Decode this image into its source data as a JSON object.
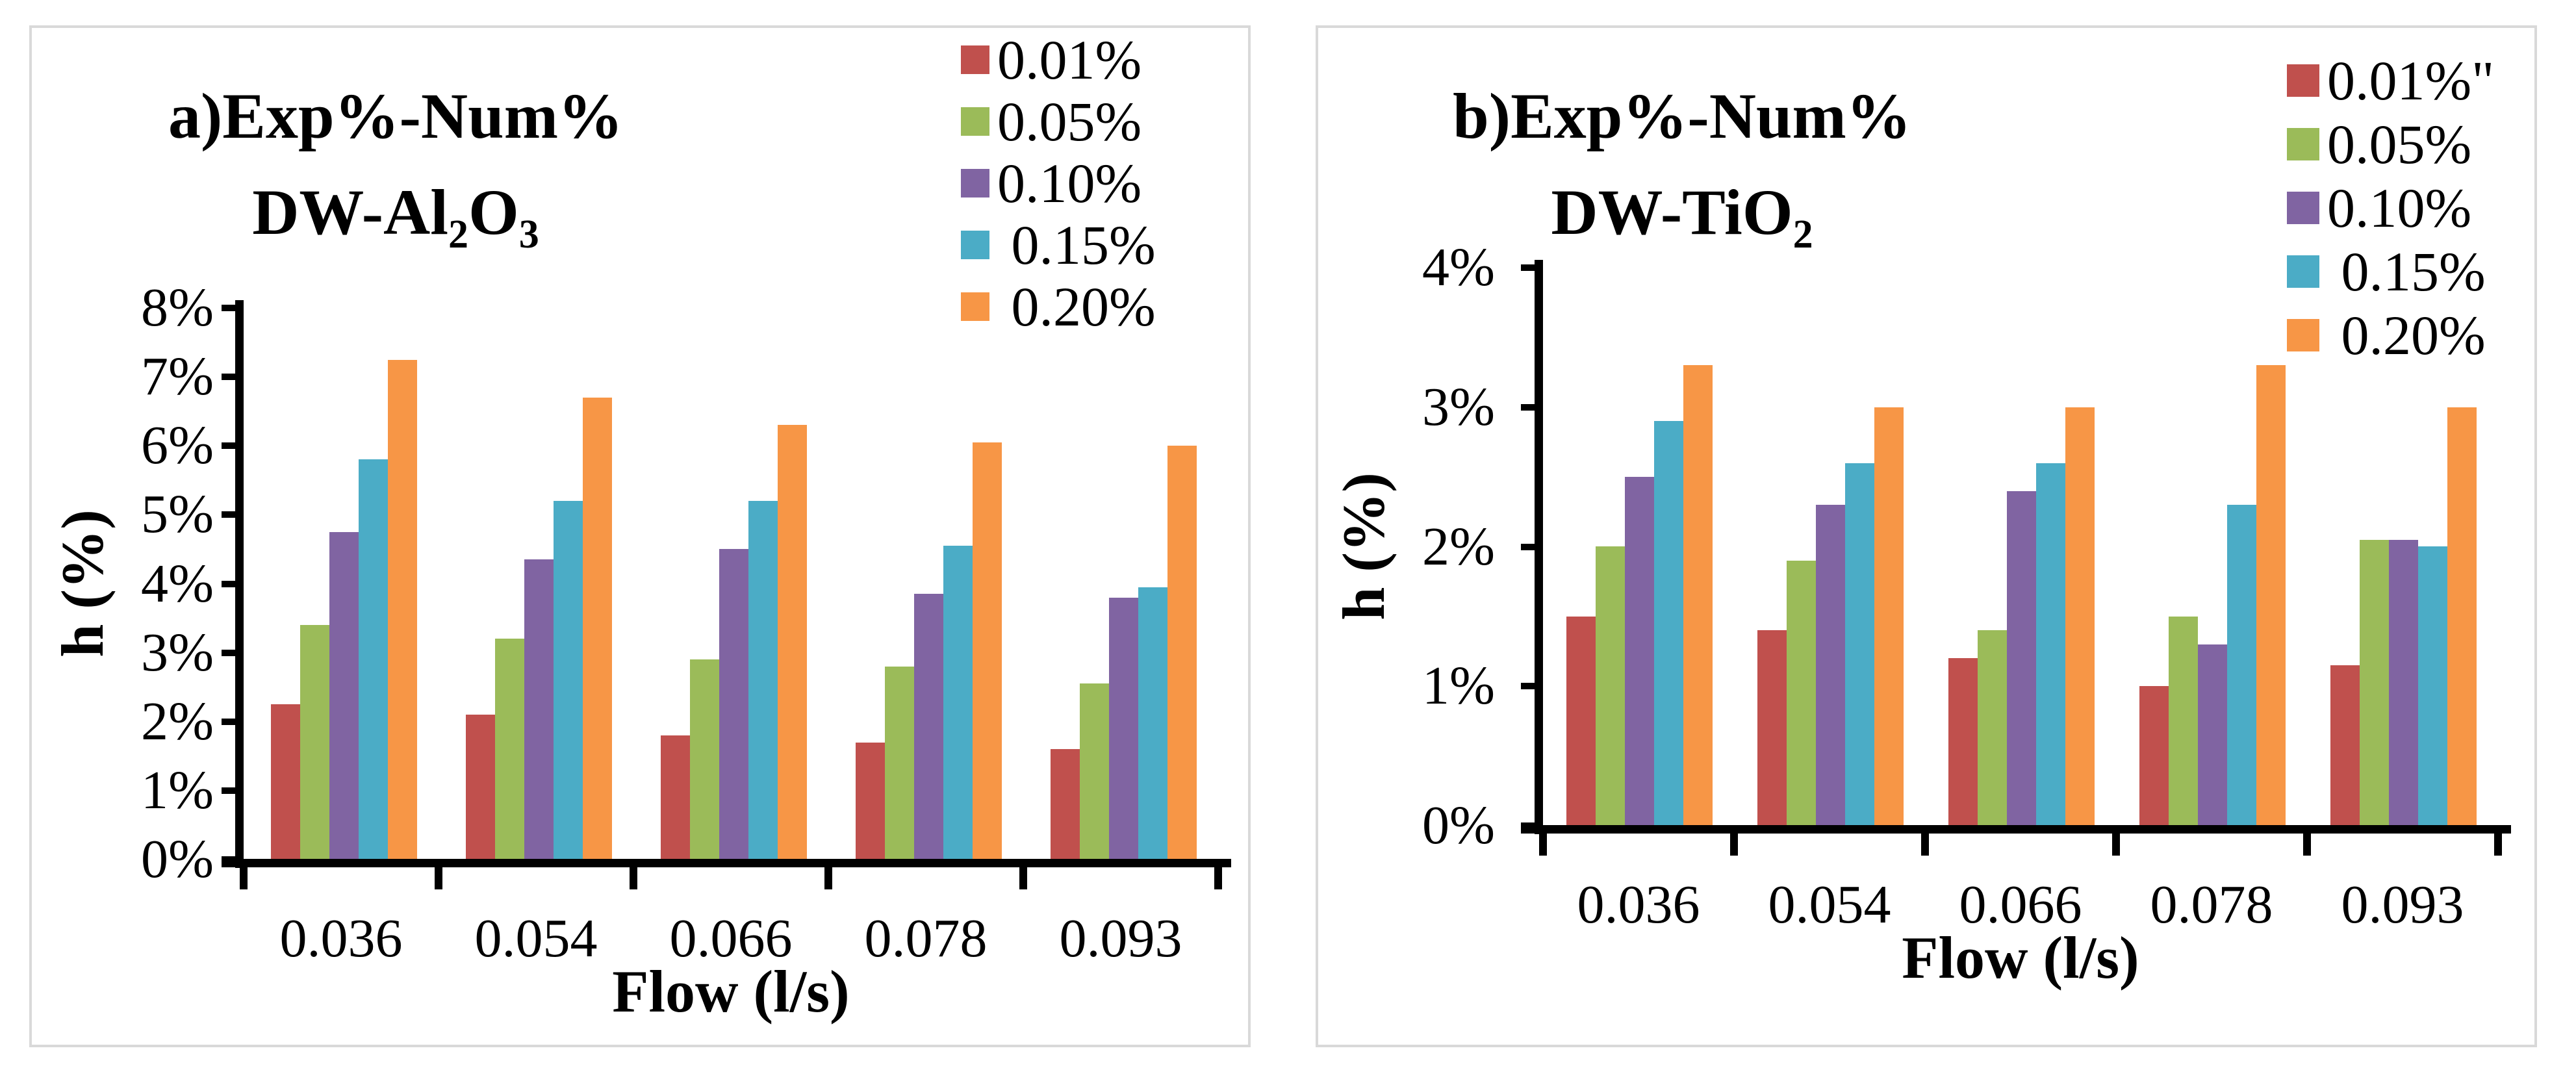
{
  "figure": {
    "background": "#ffffff",
    "panel_border_color": "#d9d9d9",
    "axis_color": "#000000"
  },
  "chart_data": [
    {
      "type": "bar",
      "panel": "a",
      "title_line1": "a)Exp%-Num%",
      "title_line2_parts": [
        {
          "t": "DW-Al"
        },
        {
          "sub": "2"
        },
        {
          "t": "O"
        },
        {
          "sub": "3"
        }
      ],
      "xlabel": "Flow (l/s)",
      "ylabel": "h (%)",
      "ylim": [
        0,
        8
      ],
      "ytick_labels": [
        "0%",
        "1%",
        "2%",
        "3%",
        "4%",
        "5%",
        "6%",
        "7%",
        "8%"
      ],
      "categories": [
        "0.036",
        "0.054",
        "0.066",
        "0.078",
        "0.093"
      ],
      "legend_position": "top-right",
      "grid": false,
      "legend_labels": [
        "0.01%",
        "0.05%",
        "0.10%",
        " 0.15%",
        " 0.20%"
      ],
      "series": [
        {
          "name": "0.01%",
          "color": "#C0504D",
          "values": [
            2.25,
            2.1,
            1.8,
            1.7,
            1.6
          ]
        },
        {
          "name": "0.05%",
          "color": "#9BBB59",
          "values": [
            3.4,
            3.2,
            2.9,
            2.8,
            2.55
          ]
        },
        {
          "name": "0.10%",
          "color": "#8064A2",
          "values": [
            4.75,
            4.35,
            4.5,
            3.85,
            3.8
          ]
        },
        {
          "name": "0.15%",
          "color": "#4BACC6",
          "values": [
            5.8,
            5.2,
            5.2,
            4.55,
            3.95
          ]
        },
        {
          "name": "0.20%",
          "color": "#F79646",
          "values": [
            7.25,
            6.7,
            6.3,
            6.05,
            6.0
          ]
        }
      ]
    },
    {
      "type": "bar",
      "panel": "b",
      "title_line1": "b)Exp%-Num%",
      "title_line2_parts": [
        {
          "t": "DW-TiO"
        },
        {
          "sub": "2"
        }
      ],
      "xlabel": "Flow (l/s)",
      "ylabel": "h (%)",
      "ylim": [
        0,
        4
      ],
      "ytick_labels": [
        "0%",
        "1%",
        "2%",
        "3%",
        "4%"
      ],
      "categories": [
        "0.036",
        "0.054",
        "0.066",
        "0.078",
        "0.093"
      ],
      "legend_position": "top-right",
      "grid": false,
      "legend_labels": [
        "0.01%\"",
        "0.05%",
        "0.10%",
        " 0.15%",
        " 0.20%"
      ],
      "series": [
        {
          "name": "0.01%",
          "color": "#C0504D",
          "values": [
            1.5,
            1.4,
            1.2,
            1.0,
            1.15
          ]
        },
        {
          "name": "0.05%",
          "color": "#9BBB59",
          "values": [
            2.0,
            1.9,
            1.4,
            1.5,
            2.05
          ]
        },
        {
          "name": "0.10%",
          "color": "#8064A2",
          "values": [
            2.5,
            2.3,
            2.4,
            1.3,
            2.05
          ]
        },
        {
          "name": "0.15%",
          "color": "#4BACC6",
          "values": [
            2.9,
            2.6,
            2.6,
            2.3,
            2.0
          ]
        },
        {
          "name": "0.20%",
          "color": "#F79646",
          "values": [
            3.3,
            3.0,
            3.0,
            3.3,
            3.0
          ]
        }
      ]
    }
  ]
}
